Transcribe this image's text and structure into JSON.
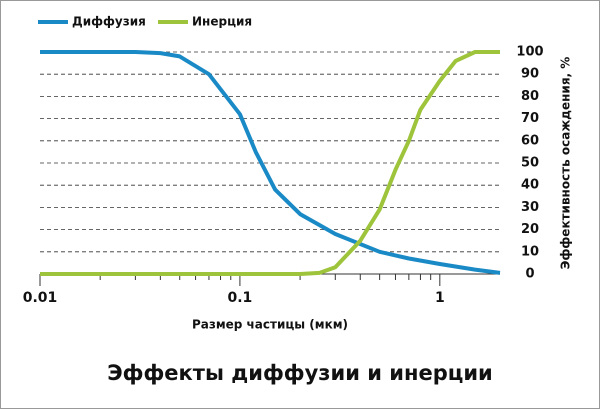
{
  "chart_data": {
    "type": "line",
    "title": "Эффекты диффузии и инерции",
    "x_label": "Размер частицы (мкм)",
    "y_label": "Эффективность осаждения, %",
    "x_scale": "log",
    "xlim": [
      0.01,
      2
    ],
    "xticks": [
      0.01,
      0.1,
      1
    ],
    "xminorticks": [
      0.02,
      0.03,
      0.04,
      0.05,
      0.06,
      0.07,
      0.08,
      0.09,
      0.2,
      0.3,
      0.4,
      0.5,
      0.6,
      0.7,
      0.8,
      0.9
    ],
    "ylim": [
      0,
      100
    ],
    "yticks": [
      0,
      10,
      20,
      30,
      40,
      50,
      60,
      70,
      80,
      90,
      100
    ],
    "grid": true,
    "legend": "top-left",
    "series": [
      {
        "name": "Диффузия",
        "color": "#1a8ac6",
        "x": [
          0.01,
          0.03,
          0.04,
          0.05,
          0.07,
          0.1,
          0.12,
          0.15,
          0.2,
          0.3,
          0.5,
          0.7,
          1,
          1.5,
          2
        ],
        "values": [
          100,
          100,
          99.5,
          98,
          90,
          72,
          55,
          38,
          27,
          18,
          10,
          7,
          4.5,
          2,
          0.5
        ]
      },
      {
        "name": "Инерция",
        "color": "#9dc43a",
        "x": [
          0.01,
          0.2,
          0.25,
          0.3,
          0.4,
          0.5,
          0.6,
          0.7,
          0.8,
          1,
          1.2,
          1.5,
          2
        ],
        "values": [
          0,
          0,
          0.5,
          3,
          15,
          29,
          47,
          60,
          74,
          87,
          96,
          100,
          100
        ]
      }
    ]
  }
}
